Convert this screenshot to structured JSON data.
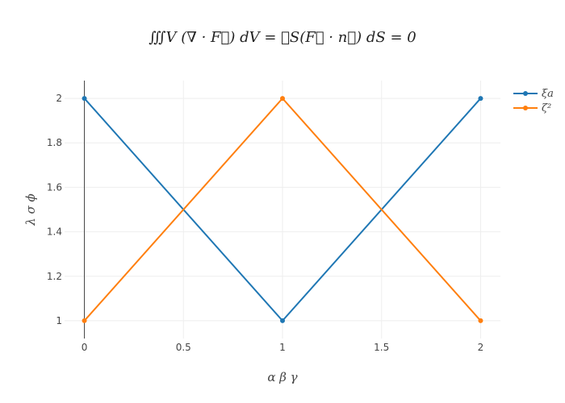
{
  "chart_data": {
    "type": "line",
    "title": "∭V (∇ · F⃗) dV = ∮S(F⃗ · n⃗) dS = 0",
    "xlabel": "α β γ",
    "ylabel": "λ  σ  ϕ",
    "xlim": [
      -0.1,
      2.1
    ],
    "ylim": [
      0.92,
      2.08
    ],
    "x_ticks": [
      0,
      0.5,
      1,
      1.5,
      2
    ],
    "x_tick_labels": [
      "0",
      "0.5",
      "1",
      "1.5",
      "2"
    ],
    "y_ticks": [
      1,
      1.2,
      1.4,
      1.6,
      1.8,
      2
    ],
    "y_tick_labels": [
      "1",
      "1.2",
      "1.4",
      "1.6",
      "1.8",
      "2"
    ],
    "grid": true,
    "legend_position": "top-right",
    "series": [
      {
        "name": "ξa",
        "color": "#1f77b4",
        "x": [
          0,
          1,
          2
        ],
        "y": [
          2,
          1,
          2
        ]
      },
      {
        "name": "ζ²",
        "color": "#ff7f0e",
        "x": [
          0,
          1,
          2
        ],
        "y": [
          1,
          2,
          1
        ]
      }
    ]
  }
}
